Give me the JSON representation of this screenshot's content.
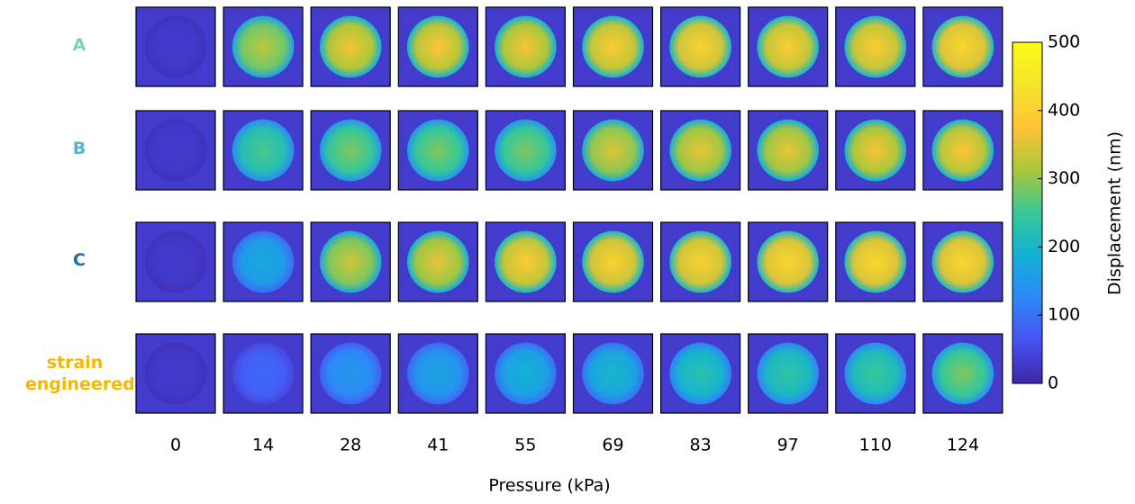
{
  "chart_data": {
    "type": "image-grid",
    "rows": [
      {
        "label": "A",
        "color": "#7dcfc0"
      },
      {
        "label": "B",
        "color": "#55b3d3"
      },
      {
        "label": "C",
        "color": "#1f6ea6"
      },
      {
        "label": "strain engineered",
        "color": "#f5b800"
      }
    ],
    "categories": [
      "0",
      "14",
      "28",
      "41",
      "55",
      "69",
      "83",
      "97",
      "110",
      "124"
    ],
    "values": [
      [
        30,
        330,
        370,
        380,
        370,
        390,
        400,
        390,
        390,
        410
      ],
      [
        30,
        260,
        290,
        290,
        290,
        350,
        360,
        360,
        370,
        380
      ],
      [
        30,
        180,
        340,
        360,
        390,
        400,
        400,
        410,
        410,
        410
      ],
      [
        30,
        90,
        150,
        170,
        190,
        200,
        230,
        240,
        250,
        290
      ]
    ],
    "xlabel": "Pressure (kPa)",
    "colorbar": {
      "label": "Displacement (nm)",
      "clim": [
        0,
        500
      ],
      "ticks": [
        0,
        100,
        200,
        300,
        400,
        500
      ]
    }
  }
}
